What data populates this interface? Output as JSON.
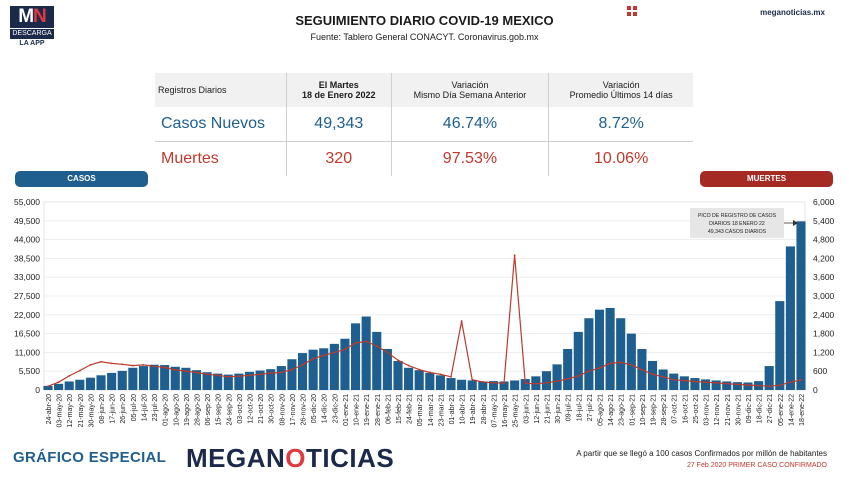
{
  "logo": {
    "mn_left": "M",
    "mn_right": "N",
    "bar": "DESCARGA",
    "sub": "LA APP"
  },
  "header": {
    "title": "SEGUIMIENTO DIARIO COVID-19 MEXICO",
    "subtitle": "Fuente: Tablero General CONACYT. Coronavirus.gob.mx",
    "site": "meganoticias.mx"
  },
  "table": {
    "col0": "Registros Diarios",
    "col1_line1": "El Martes",
    "col1_line2": "18 de Enero 2022",
    "col2_line1": "Variación",
    "col2_line2": "Mismo Día Semana Anterior",
    "col3_line1": "Variación",
    "col3_line2": "Promedio Últimos 14 días",
    "rows": [
      {
        "label": "Casos Nuevos",
        "value": "49,343",
        "var_week": "46.74%",
        "var_14d": "8.72%"
      },
      {
        "label": "Muertes",
        "value": "320",
        "var_week": "97.53%",
        "var_14d": "10.06%"
      }
    ]
  },
  "badges": {
    "cases": "CASOS",
    "deaths": "MUERTES"
  },
  "footer": {
    "left": "GRÁFICO ESPECIAL",
    "brand_a": "MEGAN",
    "brand_b": "O",
    "brand_c": "TICIAS",
    "note1": "A partir que se llegó a 100 casos Confirmados por millón de habitantes",
    "note2": "27 Feb 2020 PRIMER CASO CONFIRMADO"
  },
  "colors": {
    "cases": "#1e5f8f",
    "deaths": "#c0392b",
    "brand": "#1b2a4a"
  },
  "chart_data": {
    "type": "bar",
    "x_tick_labels": [
      "24-abr-20",
      "03-may-20",
      "12-may-20",
      "21-may-20",
      "30-may-20",
      "08-jun-20",
      "17-jun-20",
      "26-jun-20",
      "05-jul-20",
      "14-jul-20",
      "23-jul-20",
      "01-ago-20",
      "10-ago-20",
      "19-ago-20",
      "28-ago-20",
      "06-sep-20",
      "15-sep-20",
      "24-sep-20",
      "03-oct-20",
      "12-oct-20",
      "21-oct-20",
      "30-oct-20",
      "08-nov-20",
      "17-nov-20",
      "26-nov-20",
      "05-dic-20",
      "14-dic-20",
      "23-dic-20",
      "01-ene-21",
      "10-ene-21",
      "19-ene-21",
      "28-ene-21",
      "06-feb-21",
      "15-feb-21",
      "24-feb-21",
      "05-mar-21",
      "14-mar-21",
      "23-mar-21",
      "01-abr-21",
      "10-abr-21",
      "19-abr-21",
      "28-abr-21",
      "07-may-21",
      "16-may-21",
      "25-may-21",
      "03-jun-21",
      "12-jun-21",
      "21-jun-21",
      "30-jun-21",
      "09-jul-21",
      "18-jul-21",
      "27-jul-21",
      "05-ago-21",
      "14-ago-21",
      "23-ago-21",
      "01-sep-21",
      "10-sep-21",
      "19-sep-21",
      "28-sep-21",
      "07-oct-21",
      "16-oct-21",
      "25-oct-21",
      "03-nov-21",
      "12-nov-21",
      "21-nov-21",
      "30-nov-21",
      "09-dic-21",
      "18-dic-21",
      "27-dic-21",
      "05-ene-22",
      "14-ene-22",
      "18-ene-22"
    ],
    "y_left_ticks": [
      "0",
      "5,500",
      "11,000",
      "16,500",
      "22,000",
      "27,500",
      "33,000",
      "38,500",
      "44,000",
      "49,500",
      "55,000"
    ],
    "y_right_ticks": [
      "0",
      "600",
      "1,200",
      "1,800",
      "2,400",
      "3,000",
      "3,600",
      "4,200",
      "4,800",
      "5,400",
      "6,000"
    ],
    "y_left_range": [
      0,
      55000
    ],
    "y_right_range": [
      0,
      6000
    ],
    "annotation": [
      "PICO DE REGISTRO DE CASOS",
      "DIARIOS 18 ENERO 22",
      "49,343 CASOS DIARIOS"
    ],
    "series": [
      {
        "axis": "left",
        "type": "bar",
        "x": [
          "24-abr-20",
          "03-may-20",
          "12-may-20",
          "21-may-20",
          "30-may-20",
          "08-jun-20",
          "17-jun-20",
          "26-jun-20",
          "05-jul-20",
          "14-jul-20",
          "23-jul-20",
          "01-ago-20",
          "10-ago-20",
          "19-ago-20",
          "28-ago-20",
          "06-sep-20",
          "15-sep-20",
          "24-sep-20",
          "03-oct-20",
          "12-oct-20",
          "21-oct-20",
          "30-oct-20",
          "08-nov-20",
          "17-nov-20",
          "26-nov-20",
          "05-dic-20",
          "14-dic-20",
          "23-dic-20",
          "01-ene-21",
          "10-ene-21",
          "19-ene-21",
          "28-ene-21",
          "06-feb-21",
          "15-feb-21",
          "24-feb-21",
          "05-mar-21",
          "14-mar-21",
          "23-mar-21",
          "01-abr-21",
          "10-abr-21",
          "19-abr-21",
          "28-abr-21",
          "07-may-21",
          "16-may-21",
          "25-may-21",
          "03-jun-21",
          "12-jun-21",
          "21-jun-21",
          "30-jun-21",
          "09-jul-21",
          "18-jul-21",
          "27-jul-21",
          "05-ago-21",
          "14-ago-21",
          "23-ago-21",
          "01-sep-21",
          "10-sep-21",
          "19-sep-21",
          "28-sep-21",
          "07-oct-21",
          "16-oct-21",
          "25-oct-21",
          "03-nov-21",
          "12-nov-21",
          "21-nov-21",
          "30-nov-21",
          "09-dic-21",
          "18-dic-21",
          "27-dic-21",
          "05-ene-22",
          "14-ene-22",
          "18-ene-22"
        ],
        "values": [
          1200,
          1800,
          2500,
          3000,
          3600,
          4300,
          5000,
          5600,
          6500,
          7000,
          7400,
          7300,
          6800,
          6500,
          5800,
          5200,
          4800,
          4500,
          4800,
          5300,
          5700,
          6100,
          7000,
          9000,
          10800,
          11800,
          12200,
          13500,
          15000,
          19500,
          21500,
          17000,
          12000,
          8500,
          6500,
          5800,
          5000,
          4300,
          3500,
          3000,
          2800,
          2500,
          2600,
          2500,
          2800,
          3200,
          4000,
          5500,
          7500,
          12000,
          17000,
          21000,
          23500,
          24000,
          21000,
          16500,
          12000,
          8500,
          6000,
          4800,
          4000,
          3500,
          3100,
          2800,
          2500,
          2300,
          2200,
          2600,
          7000,
          26000,
          42000,
          49343
        ]
      },
      {
        "axis": "right",
        "type": "line",
        "x": [
          "24-abr-20",
          "03-may-20",
          "12-may-20",
          "21-may-20",
          "30-may-20",
          "08-jun-20",
          "17-jun-20",
          "26-jun-20",
          "05-jul-20",
          "14-jul-20",
          "23-jul-20",
          "01-ago-20",
          "10-ago-20",
          "19-ago-20",
          "28-ago-20",
          "06-sep-20",
          "15-sep-20",
          "24-sep-20",
          "03-oct-20",
          "12-oct-20",
          "21-oct-20",
          "30-oct-20",
          "08-nov-20",
          "17-nov-20",
          "26-nov-20",
          "05-dic-20",
          "14-dic-20",
          "23-dic-20",
          "01-ene-21",
          "10-ene-21",
          "19-ene-21",
          "28-ene-21",
          "06-feb-21",
          "15-feb-21",
          "24-feb-21",
          "05-mar-21",
          "14-mar-21",
          "23-mar-21",
          "01-abr-21",
          "10-abr-21",
          "19-abr-21",
          "28-abr-21",
          "07-may-21",
          "16-may-21",
          "25-may-21",
          "03-jun-21",
          "12-jun-21",
          "21-jun-21",
          "30-jun-21",
          "09-jul-21",
          "18-jul-21",
          "27-jul-21",
          "05-ago-21",
          "14-ago-21",
          "23-ago-21",
          "01-sep-21",
          "10-sep-21",
          "19-sep-21",
          "28-sep-21",
          "07-oct-21",
          "16-oct-21",
          "25-oct-21",
          "03-nov-21",
          "12-nov-21",
          "21-nov-21",
          "30-nov-21",
          "09-dic-21",
          "18-dic-21",
          "27-dic-21",
          "05-ene-22",
          "14-ene-22",
          "18-ene-22"
        ],
        "values": [
          120,
          250,
          450,
          620,
          800,
          900,
          850,
          820,
          780,
          800,
          760,
          720,
          640,
          600,
          560,
          500,
          470,
          420,
          440,
          470,
          500,
          540,
          560,
          650,
          800,
          1000,
          1100,
          1200,
          1300,
          1500,
          1550,
          1400,
          1200,
          950,
          780,
          650,
          560,
          500,
          420,
          2200,
          330,
          260,
          230,
          220,
          4300,
          210,
          200,
          230,
          280,
          350,
          450,
          600,
          700,
          850,
          880,
          800,
          650,
          500,
          420,
          330,
          300,
          270,
          250,
          230,
          200,
          180,
          160,
          140,
          120,
          150,
          250,
          320
        ]
      }
    ]
  }
}
